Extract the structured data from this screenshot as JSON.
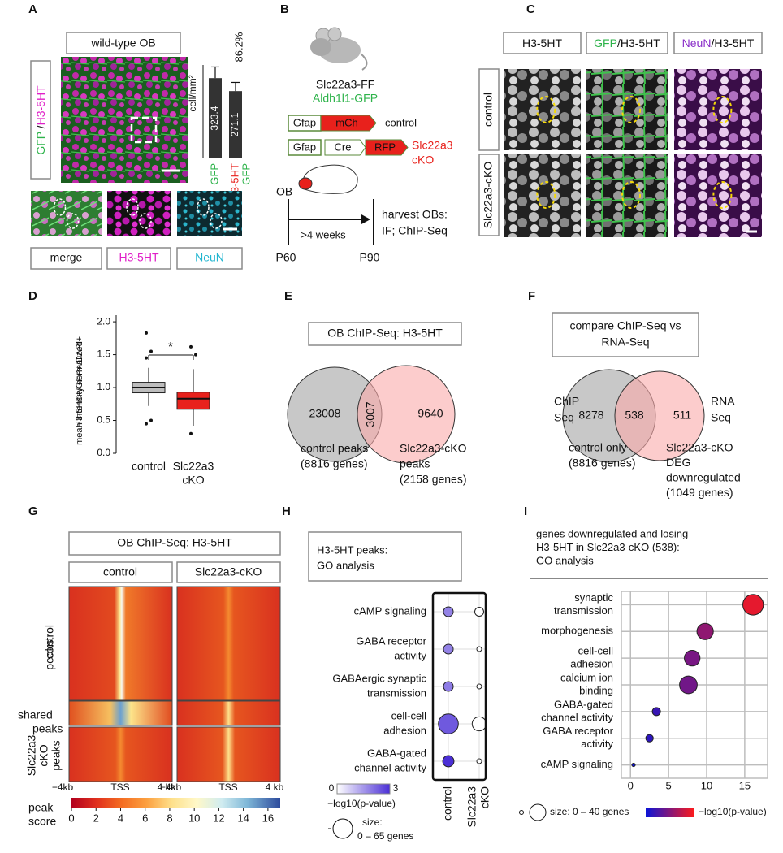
{
  "A": {
    "label": "A",
    "title": "wild-type OB",
    "side_label": [
      "GFP",
      " /",
      "H3-5HT"
    ],
    "bar_chart": {
      "type": "bar",
      "ylabel": "cell/mm²",
      "categories": [
        [
          "GFP"
        ],
        [
          "H3-5HT",
          "GFP"
        ]
      ],
      "values": [
        323.4,
        271.1
      ],
      "errors": [
        45,
        35
      ],
      "ylim": [
        0,
        360
      ],
      "color": "#333333",
      "annotation": "86.2%"
    },
    "panels": [
      "merge",
      "H3-5HT",
      "NeuN"
    ]
  },
  "B": {
    "label": "B",
    "mouse_line": "Slc22a3-FF",
    "reporter": "Aldh1l1-GFP",
    "construct1": [
      "Gfap",
      "mCh"
    ],
    "construct1_label": "control",
    "construct2": [
      "Gfap",
      "Cre",
      "RFP"
    ],
    "construct2_label": [
      "Slc22a3",
      "cKO"
    ],
    "region": "OB",
    "duration": ">4 weeks",
    "harvest": [
      "harvest OBs:",
      "IF; ChIP-Seq"
    ],
    "start": "P60",
    "end": "P90"
  },
  "C": {
    "label": "C",
    "columns": [
      [
        "H3-5HT"
      ],
      [
        "GFP",
        "/H3-5HT"
      ],
      [
        "NeuN",
        "/H3-5HT"
      ]
    ],
    "rows": [
      "control",
      "Slc22a3-cKO"
    ]
  },
  "D": {
    "label": "D",
    "type": "box",
    "ylabel": [
      "H3-5HT+/GFP+/DAPI+",
      "mean intensity normalized"
    ],
    "categories": [
      [
        "control"
      ],
      [
        "Slc22a3",
        "cKO"
      ]
    ],
    "colors": [
      "#bdbdbd",
      "#e8211c"
    ],
    "boxes": [
      {
        "min": 0.72,
        "q1": 0.92,
        "median": 1.0,
        "q3": 1.08,
        "max": 1.3,
        "outliers": [
          1.83,
          1.55,
          1.45,
          0.5,
          0.45
        ]
      },
      {
        "min": 0.42,
        "q1": 0.67,
        "median": 0.83,
        "q3": 0.93,
        "max": 1.28,
        "outliers": [
          1.62,
          1.5,
          0.3
        ]
      }
    ],
    "ylim": [
      0,
      2.1
    ],
    "yticks": [
      {
        "value": 0,
        "label": "0.0"
      },
      {
        "value": 0.5,
        "label": "0.5"
      },
      {
        "value": 1,
        "label": "1.0"
      },
      {
        "value": 1.5,
        "label": "1.5"
      },
      {
        "value": 2,
        "label": "2.0"
      }
    ],
    "significance": "*"
  },
  "E": {
    "label": "E",
    "title": "OB ChIP-Seq: H3-5HT",
    "counts": [
      23008,
      3007,
      9640
    ],
    "left_label": [
      "control peaks",
      "(8816 genes)"
    ],
    "right_label": [
      "Slc22a3-cKO",
      "peaks",
      "(2158 genes)"
    ]
  },
  "F": {
    "label": "F",
    "title": [
      "compare ChIP-Seq vs",
      "RNA-Seq"
    ],
    "set_names": [
      [
        "ChIP",
        "Seq"
      ],
      [
        "RNA",
        "Seq"
      ]
    ],
    "counts": [
      8278,
      538,
      511
    ],
    "left_label": [
      "control only",
      "(8816 genes)"
    ],
    "right_label": [
      "Slc22a3-cKO",
      "DEG",
      "downregulated",
      "(1049 genes)"
    ]
  },
  "G": {
    "label": "G",
    "title": "OB ChIP-Seq: H3-5HT",
    "columns": [
      "control",
      "Slc22a3-cKO"
    ],
    "rows": [
      [
        "control",
        "peaks"
      ],
      [
        "shared",
        "peaks"
      ],
      [
        "Slc22a3",
        "cKO",
        "peaks"
      ]
    ],
    "xaxis": [
      "−4kb",
      "TSS",
      "4 kb"
    ],
    "colorbar": {
      "label": [
        "peak",
        "score"
      ],
      "lim": [
        0,
        17
      ],
      "ticks": [
        0,
        2,
        4,
        6,
        8,
        10,
        12,
        14,
        16
      ]
    }
  },
  "H": {
    "label": "H",
    "title": [
      "H3-5HT peaks:",
      "GO analysis"
    ],
    "categories": [
      [
        "cAMP signaling"
      ],
      [
        "GABA receptor",
        "activity"
      ],
      [
        "GABAergic synaptic",
        "transmission"
      ],
      [
        "cell-cell",
        "adhesion"
      ],
      [
        "GABA-gated",
        "channel activity"
      ]
    ],
    "series": [
      {
        "name": [
          "control"
        ],
        "pvalue": [
          1.8,
          1.8,
          1.9,
          2.4,
          3.0
        ],
        "size": [
          12,
          12,
          12,
          50,
          16
        ]
      },
      {
        "name": [
          "Slc22a3",
          "cKO"
        ],
        "pvalue": [
          0,
          0,
          0,
          0,
          0
        ],
        "size": [
          10,
          3,
          3,
          25,
          3
        ]
      }
    ],
    "colors": [
      "#ffffff",
      "#4b2fd6"
    ],
    "clim": [
      0,
      3
    ],
    "color_label": "−log10(p-value)",
    "size_label": [
      "size:",
      "0 – 65 genes"
    ]
  },
  "I": {
    "label": "I",
    "title": [
      "genes downregulated and losing",
      "H3-5HT in Slc22a3-cKO (538):",
      "GO analysis"
    ],
    "categories": [
      [
        "synaptic",
        "transmission"
      ],
      [
        "morphogenesis"
      ],
      [
        "cell-cell",
        "adhesion"
      ],
      [
        "calcium ion",
        "binding"
      ],
      [
        "GABA-gated",
        "channel activity"
      ],
      [
        "GABA receptor",
        "activity"
      ],
      [
        "cAMP signaling"
      ]
    ],
    "values": [
      16.1,
      9.8,
      8.1,
      7.6,
      3.4,
      2.5,
      0.4
    ],
    "sizes": [
      38,
      24,
      22,
      28,
      6,
      5,
      1
    ],
    "xlim": [
      -1.2,
      18
    ],
    "xticks": [
      0,
      5,
      10,
      15
    ],
    "colors": [
      "#0a14d8",
      "#ff1a1a"
    ],
    "size_label": "size: 0 – 40 genes",
    "color_label": "−log10(p-value)"
  }
}
